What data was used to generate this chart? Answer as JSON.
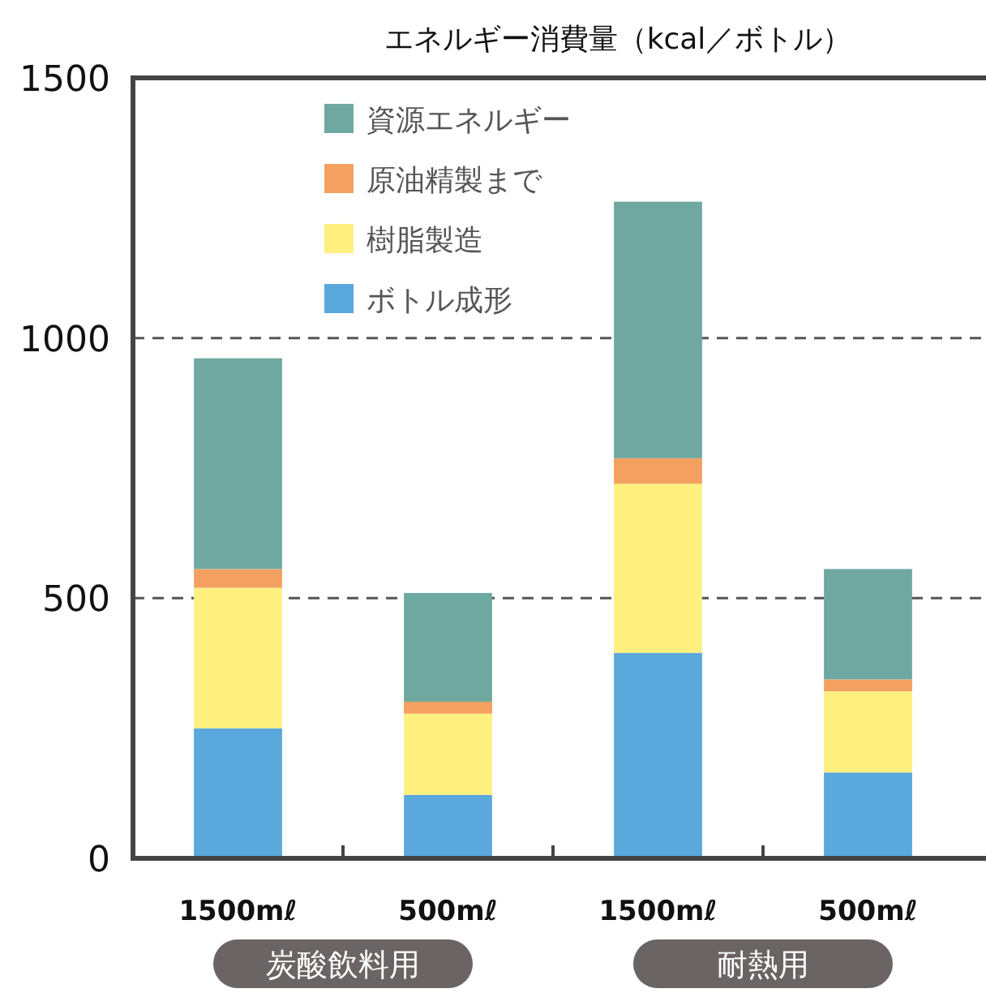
{
  "chart_data": {
    "type": "bar",
    "stacked": true,
    "title": "エネルギー消費量（kcal／ボトル）",
    "categories": [
      "1500mℓ",
      "500mℓ",
      "1500mℓ",
      "500mℓ"
    ],
    "series": [
      {
        "name": "ボトル成形",
        "color": "#5aa8dc",
        "values": [
          250,
          122,
          395,
          165
        ]
      },
      {
        "name": "樹脂製造",
        "color": "#fff080",
        "values": [
          270,
          156,
          325,
          156
        ]
      },
      {
        "name": "原油精製まで",
        "color": "#f4a060",
        "values": [
          36,
          23,
          49,
          23
        ]
      },
      {
        "name": "資源エネルギー",
        "color": "#6fa8a0",
        "values": [
          405,
          209,
          493,
          212
        ]
      }
    ],
    "ylim": [
      0,
      1500
    ],
    "yticks": [
      0,
      500,
      1000,
      1500
    ],
    "grid": "y",
    "legend": "top left",
    "annotations": [
      "炭酸飲料用",
      "耐熱用"
    ]
  }
}
